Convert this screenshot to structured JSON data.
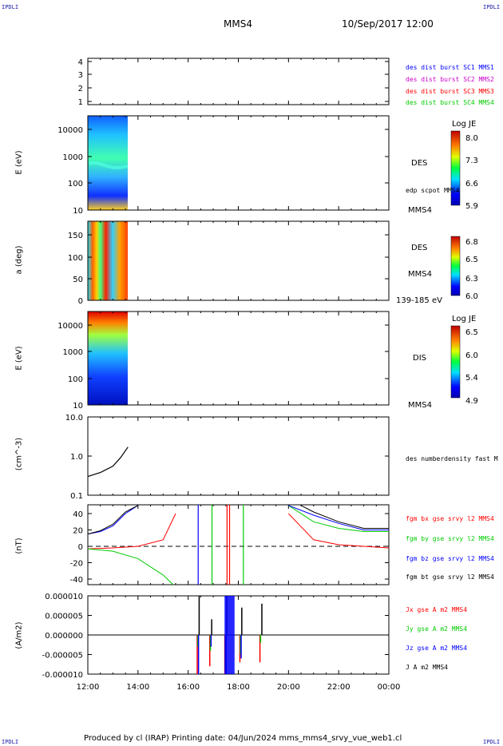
{
  "header": {
    "corner_left": "IPDLI",
    "corner_right": "IPDLI",
    "title": "MMS4",
    "date": "10/Sep/2017 12:00"
  },
  "footer": {
    "text": "Produced by cl (IRAP)   Printing date: 04/Jun/2024   mms_mms4_srvy_vue_web1.cl",
    "corner_left": "IPDLI",
    "corner_right": "IPDLI"
  },
  "x_axis": {
    "ticks": [
      "12:00",
      "14:00",
      "16:00",
      "18:00",
      "20:00",
      "22:00",
      "00:00"
    ]
  },
  "colors": {
    "blue": "#0000ff",
    "magenta": "#cc00cc",
    "red": "#ff0000",
    "green": "#00cc00",
    "black": "#000000"
  },
  "panels": {
    "p1": {
      "yticks": [
        "4",
        "3",
        "2",
        "1"
      ],
      "legend": [
        "des dist burst SC1 MMS1",
        "des dist burst SC2 MMS2",
        "des dist burst SC3 MMS3",
        "des dist burst SC4 MMS4"
      ]
    },
    "p2": {
      "ylabel": "E (eV)",
      "yticks": [
        "10000",
        "1000",
        "100",
        "10"
      ],
      "label": "DES",
      "side_note": "edp scpot MMS4",
      "bottom_label": "MMS4",
      "colorbar": {
        "title": "Log JE",
        "ticks": [
          "8.0",
          "7.3",
          "6.6",
          "5.9"
        ]
      }
    },
    "p3": {
      "ylabel": "a (deg)",
      "yticks": [
        "150",
        "100",
        "50",
        "0"
      ],
      "label": "DES",
      "label2": "MMS4",
      "bottom_label": "139-185 eV",
      "colorbar": {
        "title": "Log JE",
        "ticks": [
          "6.8",
          "6.5",
          "6.3",
          "6.0"
        ]
      }
    },
    "p4": {
      "ylabel": "E (eV)",
      "yticks": [
        "10000",
        "1000",
        "100",
        "10"
      ],
      "label": "DIS",
      "bottom_label": "MMS4",
      "colorbar": {
        "title": "Log JE",
        "ticks": [
          "6.5",
          "6.0",
          "5.4",
          "4.9"
        ]
      }
    },
    "p5": {
      "ylabel": "(cm^-3)",
      "yticks": [
        "10.0",
        "1.0",
        "0.1"
      ],
      "legend": "des numberdensity fast M"
    },
    "p6": {
      "ylabel": "(nT)",
      "yticks": [
        "40",
        "20",
        "0",
        "-20",
        "-40"
      ],
      "legend": [
        "fgm bx gse srvy l2 MMS4",
        "fgm by gse srvy l2 MMS4",
        "fgm bz gse srvy l2 MMS4",
        "fgm bt gse srvy l2 MMS4"
      ]
    },
    "p7": {
      "ylabel": "(A/m2)",
      "yticks": [
        "0.000010",
        "0.000005",
        "0.000000",
        "-0.000005",
        "-0.000010"
      ],
      "legend": [
        "Jx gse A m2 MMS4",
        "Jy gse A m2 MMS4",
        "Jz gse A m2 MMS4",
        "J A m2 MMS4"
      ]
    }
  },
  "chart_data": [
    {
      "type": "line",
      "title": "des numberdensity fast",
      "ylabel": "(cm^-3)",
      "yscale": "log",
      "ylim": [
        0.1,
        10
      ],
      "x": [
        12.0,
        12.5,
        13.0,
        13.3,
        13.6
      ],
      "values": [
        0.3,
        0.38,
        0.55,
        0.9,
        1.7
      ]
    },
    {
      "type": "line",
      "ylabel": "(nT)",
      "ylim": [
        -50,
        50
      ],
      "x_range": [
        "12:00",
        "00:00"
      ],
      "series": [
        {
          "name": "fgm bx gse srvy l2 MMS4",
          "x": [
            12.0,
            13.0,
            14.0,
            15.0,
            15.5,
            20.0,
            21.0,
            22.0,
            23.0,
            24.0
          ],
          "values": [
            -3,
            -2,
            0,
            8,
            40,
            40,
            8,
            2,
            0,
            -2
          ]
        },
        {
          "name": "fgm by gse srvy l2 MMS4",
          "x": [
            12.0,
            13.0,
            14.0,
            15.0,
            15.4,
            20.0,
            21.0,
            22.0,
            23.0,
            24.0
          ],
          "values": [
            -3,
            -6,
            -15,
            -35,
            -50,
            50,
            30,
            22,
            18,
            18
          ]
        },
        {
          "name": "fgm bz gse srvy l2 MMS4",
          "x": [
            12.0,
            12.5,
            13.0,
            13.5,
            14.0,
            20.0,
            21.0,
            22.0,
            23.0,
            24.0
          ],
          "values": [
            15,
            18,
            25,
            40,
            50,
            50,
            38,
            28,
            20,
            20
          ]
        },
        {
          "name": "fgm bt gse srvy l2 MMS4",
          "x": [
            12.0,
            12.5,
            13.0,
            13.5,
            14.0,
            20.5,
            21.0,
            22.0,
            23.0,
            24.0
          ],
          "values": [
            15,
            19,
            27,
            42,
            50,
            50,
            42,
            30,
            22,
            22
          ]
        }
      ]
    },
    {
      "type": "line",
      "ylabel": "(A/m2)",
      "ylim": [
        -1e-05,
        1e-05
      ],
      "series": [
        {
          "name": "Jx gse A m2 MMS4",
          "x": [
            16.4,
            16.9,
            17.5,
            18.1,
            18.9
          ],
          "values": [
            -1e-05,
            -8e-06,
            -1e-05,
            -7e-06,
            -7e-06
          ]
        },
        {
          "name": "Jy gse A m2 MMS4",
          "x": [
            16.4,
            16.9,
            17.5,
            18.1,
            18.9
          ],
          "values": [
            -3e-06,
            -4e-06,
            -9e-06,
            -5e-06,
            -2e-06
          ]
        },
        {
          "name": "Jz gse A m2 MMS4",
          "x": [
            16.4,
            16.9,
            17.5,
            18.1,
            18.9
          ],
          "values": [
            -1e-05,
            -3e-06,
            -1e-05,
            -6e-06,
            0.0
          ]
        },
        {
          "name": "J A m2 MMS4",
          "x": [
            16.4,
            16.9,
            17.5,
            18.1,
            18.9
          ],
          "values": [
            1e-05,
            4e-06,
            1e-05,
            7e-06,
            8e-06
          ]
        }
      ]
    }
  ]
}
